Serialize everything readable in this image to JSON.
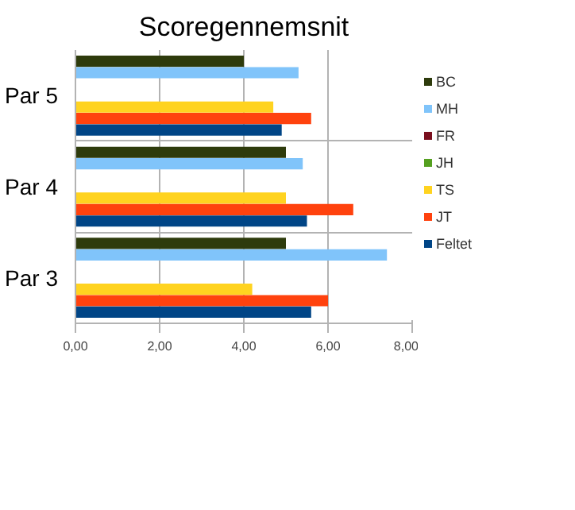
{
  "chart_data": {
    "type": "bar",
    "orientation": "horizontal",
    "title": "Scoregennemsnit",
    "categories": [
      "Par 5",
      "Par 4",
      "Par 3"
    ],
    "series": [
      {
        "name": "BC",
        "color": "#2e3b0c",
        "values": [
          4.0,
          5.0,
          5.0
        ]
      },
      {
        "name": "MH",
        "color": "#80c4fa",
        "values": [
          5.3,
          5.4,
          7.4
        ]
      },
      {
        "name": "FR",
        "color": "#7a0f1e",
        "values": [
          null,
          null,
          null
        ]
      },
      {
        "name": "JH",
        "color": "#55a020",
        "values": [
          null,
          null,
          null
        ]
      },
      {
        "name": "TS",
        "color": "#ffd320",
        "values": [
          4.7,
          5.0,
          4.2
        ]
      },
      {
        "name": "JT",
        "color": "#ff420e",
        "values": [
          5.6,
          6.6,
          6.0
        ]
      },
      {
        "name": "Feltet",
        "color": "#004586",
        "values": [
          4.9,
          5.5,
          5.6
        ]
      }
    ],
    "xlim": [
      0,
      8
    ],
    "xticks": [
      {
        "value": 0,
        "label": "0,00"
      },
      {
        "value": 2,
        "label": "2,00"
      },
      {
        "value": 4,
        "label": "4,00"
      },
      {
        "value": 6,
        "label": "6,00"
      },
      {
        "value": 8,
        "label": "8,00"
      }
    ],
    "grid": true,
    "legend": "right"
  }
}
